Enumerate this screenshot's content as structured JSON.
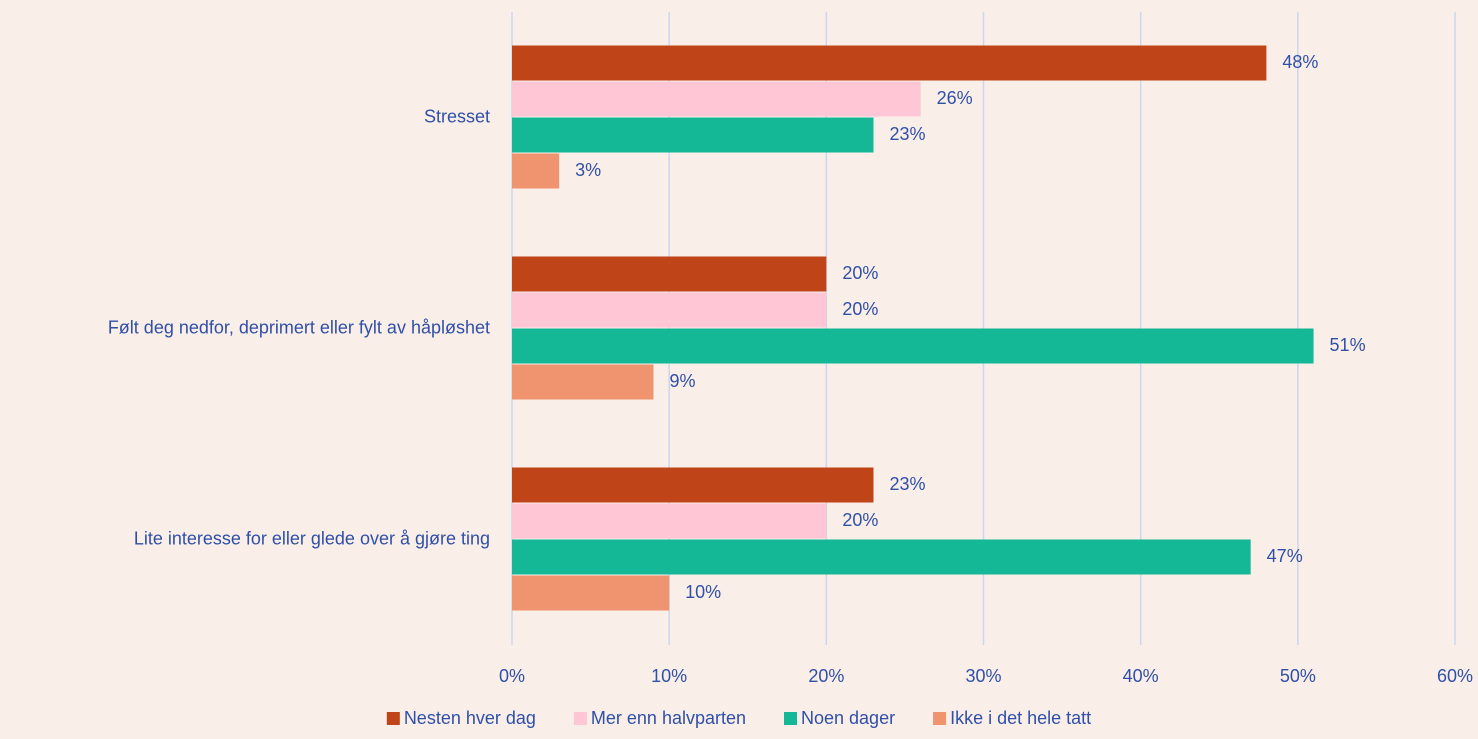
{
  "chart_data": {
    "type": "bar",
    "orientation": "horizontal",
    "categories": [
      "Stresset",
      "Følt deg nedfor, deprimert eller fylt av håpløshet",
      "Lite interesse for eller glede over å gjøre ting"
    ],
    "series": [
      {
        "name": "Nesten hver dag",
        "color": "#bf4417",
        "values": [
          48,
          20,
          23
        ],
        "value_labels": [
          "48%",
          "20%",
          "23%"
        ]
      },
      {
        "name": "Mer enn halvparten",
        "color": "#ffc7d6",
        "values": [
          26,
          20,
          20
        ],
        "value_labels": [
          "26%",
          "20%",
          "20%"
        ]
      },
      {
        "name": "Noen dager",
        "color": "#14b896",
        "values": [
          23,
          51,
          47
        ],
        "value_labels": [
          "23%",
          "51%",
          "47%"
        ]
      },
      {
        "name": "Ikke i det hele tatt",
        "color": "#f0936f",
        "values": [
          3,
          9,
          10
        ],
        "value_labels": [
          "3%",
          "9%",
          "10%"
        ]
      }
    ],
    "xlim": [
      0,
      60
    ],
    "xticks": [
      {
        "value": 0,
        "label": "0%"
      },
      {
        "value": 10,
        "label": "10%"
      },
      {
        "value": 20,
        "label": "20%"
      },
      {
        "value": 30,
        "label": "30%"
      },
      {
        "value": 40,
        "label": "40%"
      },
      {
        "value": 50,
        "label": "50%"
      },
      {
        "value": 60,
        "label": "60%"
      }
    ],
    "grid": true,
    "legend": "bottom"
  }
}
